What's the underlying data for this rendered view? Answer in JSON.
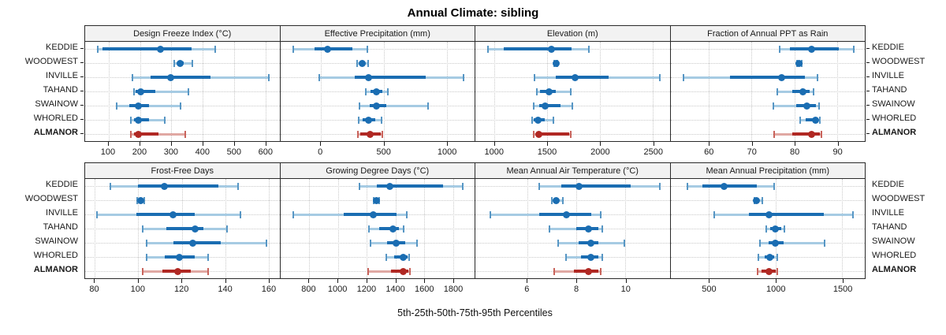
{
  "chart_data": {
    "type": "scatter",
    "subtype": "percentile-dotplot-trellis",
    "title": "Annual Climate: sibling",
    "xlabel": "5th-25th-50th-75th-95th Percentiles",
    "legend_position": "none",
    "grid": true,
    "stations": [
      "KEDDIE",
      "WOODWEST",
      "INVILLE",
      "TAHAND",
      "SWAINOW",
      "WHORLED",
      "ALMANOR"
    ],
    "highlight_station": "ALMANOR",
    "percentile_labels": [
      "p5",
      "p25",
      "p50",
      "p75",
      "p95"
    ],
    "colors": {
      "series_blue": "#1a6db2",
      "series_blue_light": "#a6cbe3",
      "series_blue_cap": "#5796c4",
      "highlight_red": "#b02823",
      "highlight_red_light": "#e0a8a3",
      "highlight_red_cap": "#c9645c",
      "panel_header_bg": "#f2f2f2",
      "panel_border": "#2a2a2a",
      "gridline": "#c9c9c9"
    },
    "panels": [
      {
        "title": "Design Freeze Index (°C)",
        "row": 1,
        "xlim": [
          25,
          645
        ],
        "ticks": [
          100,
          200,
          300,
          400,
          500,
          600
        ],
        "values": [
          [
            65,
            80,
            265,
            365,
            440
          ],
          [
            310,
            320,
            327,
            340,
            367
          ],
          [
            175,
            235,
            298,
            425,
            610
          ],
          [
            180,
            187,
            202,
            248,
            355
          ],
          [
            125,
            165,
            195,
            230,
            330
          ],
          [
            170,
            180,
            195,
            228,
            278
          ],
          [
            170,
            180,
            196,
            258,
            345
          ]
        ]
      },
      {
        "title": "Effective Precipitation (mm)",
        "row": 1,
        "xlim": [
          -320,
          1220
        ],
        "ticks": [
          0,
          500,
          1000
        ],
        "values": [
          [
            -220,
            -50,
            55,
            250,
            370
          ],
          [
            290,
            310,
            328,
            352,
            378
          ],
          [
            -10,
            270,
            380,
            835,
            1130
          ],
          [
            360,
            395,
            440,
            490,
            530
          ],
          [
            310,
            390,
            440,
            520,
            850
          ],
          [
            300,
            330,
            380,
            432,
            480
          ],
          [
            298,
            312,
            390,
            475,
            492
          ]
        ]
      },
      {
        "title": "Elevation (m)",
        "row": 1,
        "xlim": [
          820,
          2660
        ],
        "ticks": [
          1000,
          1500,
          2000,
          2500
        ],
        "values": [
          [
            940,
            1090,
            1540,
            1730,
            1895
          ],
          [
            1570,
            1578,
            1585,
            1592,
            1600
          ],
          [
            1380,
            1578,
            1765,
            2080,
            2570
          ],
          [
            1405,
            1435,
            1515,
            1578,
            1722
          ],
          [
            1375,
            1425,
            1478,
            1628,
            1740
          ],
          [
            1360,
            1375,
            1416,
            1478,
            1558
          ],
          [
            1375,
            1405,
            1424,
            1712,
            1722
          ]
        ]
      },
      {
        "title": "Fraction of Annual PPT as Rain",
        "row": 1,
        "xlim": [
          51,
          96.5
        ],
        "ticks": [
          60,
          70,
          80,
          90
        ],
        "values": [
          [
            76.5,
            79,
            84,
            90.5,
            94
          ],
          [
            80.6,
            80.9,
            81.1,
            81.4,
            81.8
          ],
          [
            54,
            65,
            77,
            82.5,
            85.5
          ],
          [
            76,
            79.5,
            82,
            83.5,
            84.5
          ],
          [
            75,
            80.5,
            83,
            85,
            85.8
          ],
          [
            81.3,
            82.6,
            85,
            85.7,
            86
          ],
          [
            75.3,
            79.6,
            84,
            85.9,
            86.3
          ]
        ]
      },
      {
        "title": "Frost-Free Days",
        "row": 2,
        "xlim": [
          75.5,
          165
        ],
        "ticks": [
          80,
          100,
          120,
          140,
          160
        ],
        "values": [
          [
            87,
            100,
            112,
            137,
            146
          ],
          [
            99.5,
            100.3,
            101,
            101.8,
            102.8
          ],
          [
            81,
            99,
            116,
            126,
            147
          ],
          [
            102,
            113,
            126,
            130,
            141
          ],
          [
            104,
            116,
            125,
            138,
            159
          ],
          [
            104,
            112,
            119,
            126,
            132
          ],
          [
            102,
            111,
            118,
            124,
            132
          ]
        ]
      },
      {
        "title": "Growing Degree Days (°C)",
        "row": 2,
        "xlim": [
          600,
          1950
        ],
        "ticks": [
          800,
          1000,
          1200,
          1400,
          1600,
          1800
        ],
        "values": [
          [
            1150,
            1270,
            1360,
            1730,
            1870
          ],
          [
            1248,
            1258,
            1266,
            1275,
            1285
          ],
          [
            690,
            1040,
            1245,
            1410,
            1480
          ],
          [
            1215,
            1290,
            1385,
            1425,
            1455
          ],
          [
            1225,
            1340,
            1405,
            1470,
            1550
          ],
          [
            1335,
            1390,
            1455,
            1482,
            1495
          ],
          [
            1210,
            1370,
            1452,
            1488,
            1500
          ]
        ]
      },
      {
        "title": "Mean Annual Air Temperature (°C)",
        "row": 2,
        "xlim": [
          3.9,
          11.8
        ],
        "ticks": [
          6,
          8,
          10
        ],
        "values": [
          [
            6.5,
            7.4,
            8.1,
            10.2,
            11.4
          ],
          [
            7.0,
            7.1,
            7.2,
            7.3,
            7.45
          ],
          [
            4.5,
            6.5,
            7.6,
            8.6,
            9.0
          ],
          [
            6.9,
            8.0,
            8.5,
            8.9,
            9.05
          ],
          [
            7.25,
            8.1,
            8.6,
            8.9,
            9.95
          ],
          [
            7.6,
            8.2,
            8.6,
            8.9,
            9.05
          ],
          [
            7.1,
            7.9,
            8.5,
            8.9,
            9.0
          ]
        ]
      },
      {
        "title": "Mean Annual Precipitation (mm)",
        "row": 2,
        "xlim": [
          210,
          1670
        ],
        "ticks": [
          500,
          1000,
          1500
        ],
        "values": [
          [
            340,
            450,
            610,
            860,
            990
          ],
          [
            838,
            848,
            858,
            878,
            898
          ],
          [
            540,
            800,
            950,
            1360,
            1580
          ],
          [
            930,
            960,
            1000,
            1040,
            1065
          ],
          [
            880,
            950,
            1000,
            1060,
            1370
          ],
          [
            870,
            920,
            955,
            990,
            1012
          ],
          [
            862,
            892,
            950,
            1002,
            1015
          ]
        ]
      }
    ]
  }
}
